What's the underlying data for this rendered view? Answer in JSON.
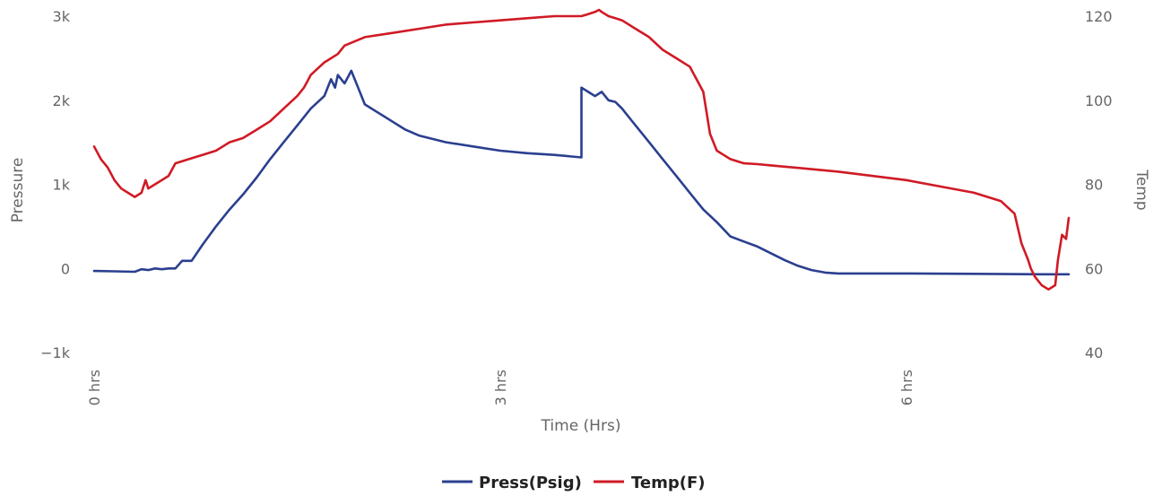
{
  "chart_data": {
    "type": "line",
    "title": "",
    "xlabel": "Time (Hrs)",
    "ylabel": "Pressure",
    "y2label": "Temp",
    "xlim": [
      0,
      7.2
    ],
    "ylim": [
      -1000,
      3000
    ],
    "y2lim": [
      40,
      120
    ],
    "x_ticks": [
      {
        "value": 0,
        "label": "0 hrs"
      },
      {
        "value": 3,
        "label": "3 hrs"
      },
      {
        "value": 6,
        "label": "6 hrs"
      }
    ],
    "y_ticks": [
      {
        "value": 3000,
        "label": "3k"
      },
      {
        "value": 2000,
        "label": "2k"
      },
      {
        "value": 1000,
        "label": "1k"
      },
      {
        "value": 0,
        "label": "0"
      },
      {
        "value": -1000,
        "label": "−1k"
      }
    ],
    "y2_ticks": [
      {
        "value": 120,
        "label": "120"
      },
      {
        "value": 100,
        "label": "100"
      },
      {
        "value": 80,
        "label": "80"
      },
      {
        "value": 60,
        "label": "60"
      },
      {
        "value": 40,
        "label": "40"
      }
    ],
    "grid": false,
    "legend": "bottom-center",
    "series": [
      {
        "name": "Press(Psig)",
        "color": "#2b3f8f",
        "axis": "left",
        "x": [
          0,
          0.15,
          0.3,
          0.35,
          0.4,
          0.45,
          0.5,
          0.55,
          0.6,
          0.65,
          0.72,
          0.8,
          0.9,
          1.0,
          1.1,
          1.2,
          1.3,
          1.4,
          1.5,
          1.6,
          1.7,
          1.75,
          1.78,
          1.8,
          1.85,
          1.9,
          1.95,
          2.0,
          2.1,
          2.2,
          2.3,
          2.4,
          2.6,
          2.8,
          3.0,
          3.2,
          3.4,
          3.6,
          3.6,
          3.65,
          3.7,
          3.75,
          3.8,
          3.85,
          3.9,
          3.95,
          4.0,
          4.1,
          4.2,
          4.3,
          4.4,
          4.5,
          4.6,
          4.7,
          4.8,
          4.9,
          5.0,
          5.1,
          5.2,
          5.3,
          5.4,
          5.5,
          5.6,
          5.7,
          5.8,
          5.9,
          6.0,
          6.5,
          7.0,
          7.2
        ],
        "values": [
          -30,
          -35,
          -40,
          -10,
          -20,
          0,
          -10,
          0,
          0,
          90,
          90,
          280,
          500,
          700,
          880,
          1080,
          1300,
          1500,
          1700,
          1900,
          2050,
          2250,
          2150,
          2300,
          2200,
          2350,
          2150,
          1950,
          1850,
          1750,
          1650,
          1580,
          1500,
          1450,
          1400,
          1370,
          1350,
          1320,
          2150,
          2100,
          2050,
          2100,
          2000,
          1980,
          1900,
          1800,
          1700,
          1500,
          1300,
          1100,
          900,
          700,
          550,
          380,
          320,
          260,
          180,
          100,
          30,
          -20,
          -50,
          -60,
          -60,
          -60,
          -60,
          -60,
          -60,
          -65,
          -70,
          -70
        ]
      },
      {
        "name": "Temp(F)",
        "color": "#d01a25",
        "axis": "right",
        "x": [
          0,
          0.05,
          0.1,
          0.15,
          0.2,
          0.25,
          0.3,
          0.35,
          0.38,
          0.4,
          0.45,
          0.5,
          0.55,
          0.6,
          0.7,
          0.8,
          0.9,
          1.0,
          1.1,
          1.2,
          1.3,
          1.4,
          1.5,
          1.55,
          1.6,
          1.7,
          1.8,
          1.85,
          2.0,
          2.2,
          2.4,
          2.6,
          2.8,
          3.0,
          3.2,
          3.4,
          3.6,
          3.65,
          3.7,
          3.73,
          3.75,
          3.8,
          3.85,
          3.9,
          4.0,
          4.1,
          4.2,
          4.3,
          4.4,
          4.5,
          4.55,
          4.6,
          4.65,
          4.7,
          4.75,
          4.8,
          4.9,
          5.0,
          5.5,
          6.0,
          6.5,
          6.7,
          6.8,
          6.85,
          6.9,
          6.92,
          6.95,
          7.0,
          7.05,
          7.1,
          7.12,
          7.15,
          7.18,
          7.2
        ],
        "values": [
          89,
          86,
          84,
          81,
          79,
          78,
          77,
          78,
          81,
          79,
          80,
          81,
          82,
          85,
          86,
          87,
          88,
          90,
          91,
          93,
          95,
          98,
          101,
          103,
          106,
          109,
          111,
          113,
          115,
          116,
          117,
          118,
          118.5,
          119,
          119.5,
          120,
          120,
          120.5,
          121,
          121.5,
          121,
          120,
          119.5,
          119,
          117,
          115,
          112,
          110,
          108,
          102,
          92,
          88,
          87,
          86,
          85.5,
          85,
          84.8,
          84.5,
          83,
          81,
          78,
          76,
          73,
          66,
          62,
          60,
          58,
          56,
          55,
          56,
          62,
          68,
          67,
          72
        ]
      }
    ]
  }
}
